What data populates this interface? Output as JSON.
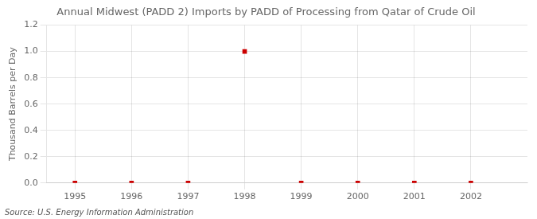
{
  "chart_data": {
    "type": "scatter",
    "title": "Annual Midwest (PADD 2) Imports by PADD of Processing from Qatar of Crude Oil",
    "y_label": "Thousand Barrels per Day",
    "source": "Source: U.S. Energy Information Administration",
    "x": [
      1995,
      1996,
      1997,
      1998,
      1999,
      2000,
      2001,
      2002
    ],
    "values": [
      0,
      0,
      0,
      1.0,
      0,
      0,
      0,
      0
    ],
    "color": "#cc0000",
    "marker": "square",
    "xlim": [
      1994.5,
      2003.0
    ],
    "xticks": [
      1995,
      1996,
      1997,
      1998,
      1999,
      2000,
      2001,
      2002
    ],
    "ylim": [
      0.0,
      1.2
    ],
    "yticks": [
      {
        "value": 0.0,
        "label": "0.0"
      },
      0.2,
      0.4,
      0.6,
      0.8,
      {
        "value": 1.0,
        "label": "1.0"
      },
      1.2
    ],
    "grid": true
  }
}
